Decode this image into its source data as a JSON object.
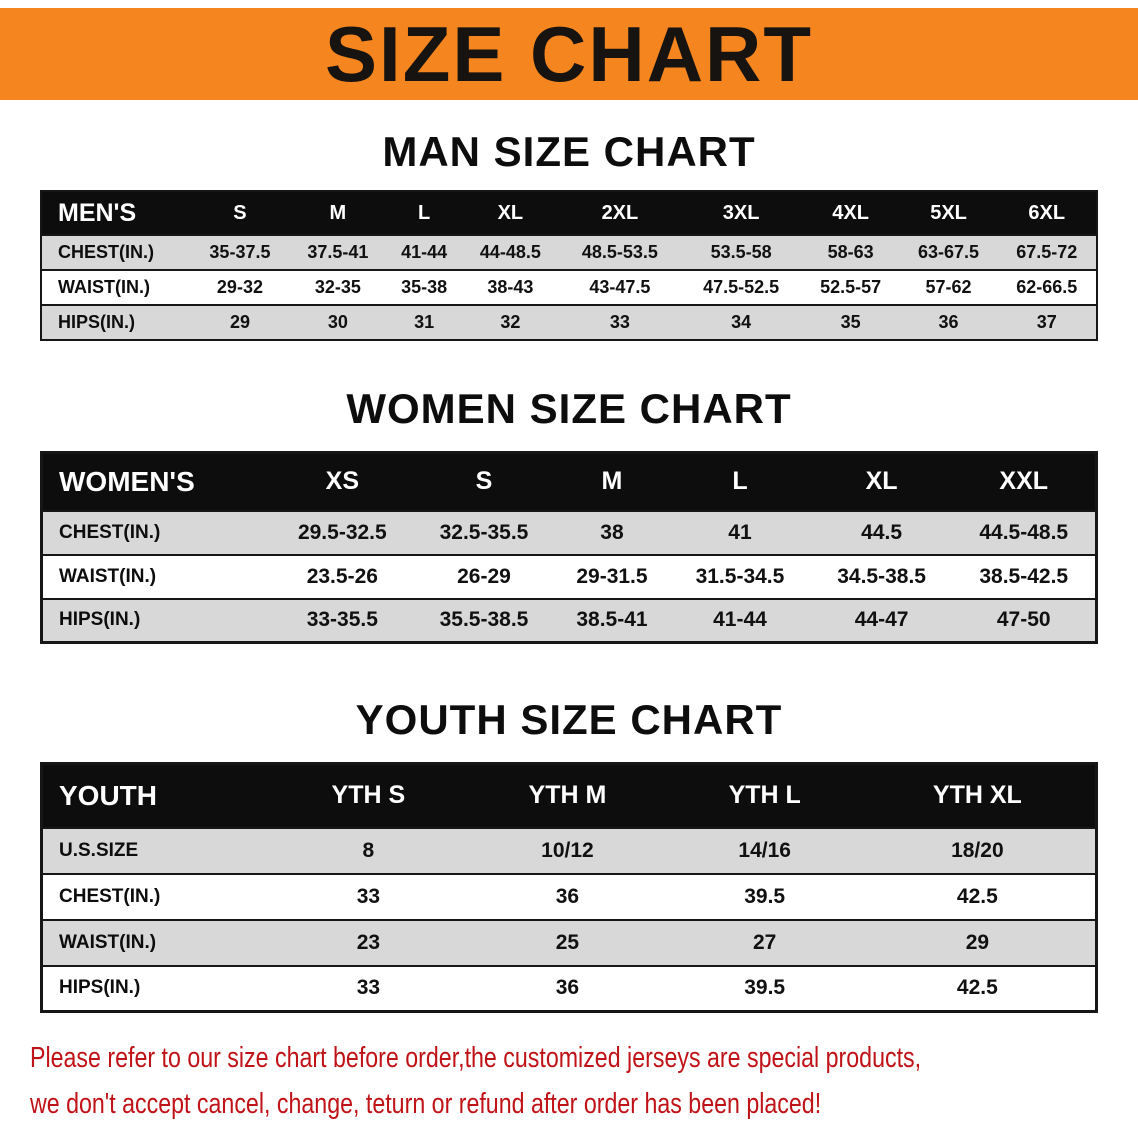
{
  "banner": {
    "title": "SIZE CHART"
  },
  "chart_data": [
    {
      "type": "table",
      "title": "MAN SIZE CHART",
      "header": [
        "MEN'S",
        "S",
        "M",
        "L",
        "XL",
        "2XL",
        "3XL",
        "4XL",
        "5XL",
        "6XL"
      ],
      "rows": [
        {
          "label": "CHEST(IN.)",
          "values": [
            "35-37.5",
            "37.5-41",
            "41-44",
            "44-48.5",
            "48.5-53.5",
            "53.5-58",
            "58-63",
            "63-67.5",
            "67.5-72"
          ]
        },
        {
          "label": "WAIST(IN.)",
          "values": [
            "29-32",
            "32-35",
            "35-38",
            "38-43",
            "43-47.5",
            "47.5-52.5",
            "52.5-57",
            "57-62",
            "62-66.5"
          ]
        },
        {
          "label": "HIPS(IN.)",
          "values": [
            "29",
            "30",
            "31",
            "32",
            "33",
            "34",
            "35",
            "36",
            "37"
          ]
        }
      ]
    },
    {
      "type": "table",
      "title": "WOMEN SIZE CHART",
      "header": [
        "WOMEN'S",
        "XS",
        "S",
        "M",
        "L",
        "XL",
        "XXL"
      ],
      "rows": [
        {
          "label": "CHEST(IN.)",
          "values": [
            "29.5-32.5",
            "32.5-35.5",
            "38",
            "41",
            "44.5",
            "44.5-48.5"
          ]
        },
        {
          "label": "WAIST(IN.)",
          "values": [
            "23.5-26",
            "26-29",
            "29-31.5",
            "31.5-34.5",
            "34.5-38.5",
            "38.5-42.5"
          ]
        },
        {
          "label": "HIPS(IN.)",
          "values": [
            "33-35.5",
            "35.5-38.5",
            "38.5-41",
            "41-44",
            "44-47",
            "47-50"
          ]
        }
      ]
    },
    {
      "type": "table",
      "title": "YOUTH SIZE CHART",
      "header": [
        "YOUTH",
        "YTH S",
        "YTH M",
        "YTH L",
        "YTH XL"
      ],
      "rows": [
        {
          "label": "U.S.SIZE",
          "values": [
            "8",
            "10/12",
            "14/16",
            "18/20"
          ]
        },
        {
          "label": "CHEST(IN.)",
          "values": [
            "33",
            "36",
            "39.5",
            "42.5"
          ]
        },
        {
          "label": "WAIST(IN.)",
          "values": [
            "23",
            "25",
            "27",
            "29"
          ]
        },
        {
          "label": "HIPS(IN.)",
          "values": [
            "33",
            "36",
            "39.5",
            "42.5"
          ]
        }
      ]
    }
  ],
  "disclaimer": {
    "line1": "Please refer to our size chart before order,the customized jerseys are special products,",
    "line2": "we don't accept cancel, change, teturn or refund after order has been placed!"
  },
  "colors": {
    "banner_orange": "#F5851F",
    "header_black": "#0D0D0D",
    "row_gray": "#D8D8D8",
    "disclaimer_red": "#C01318"
  }
}
